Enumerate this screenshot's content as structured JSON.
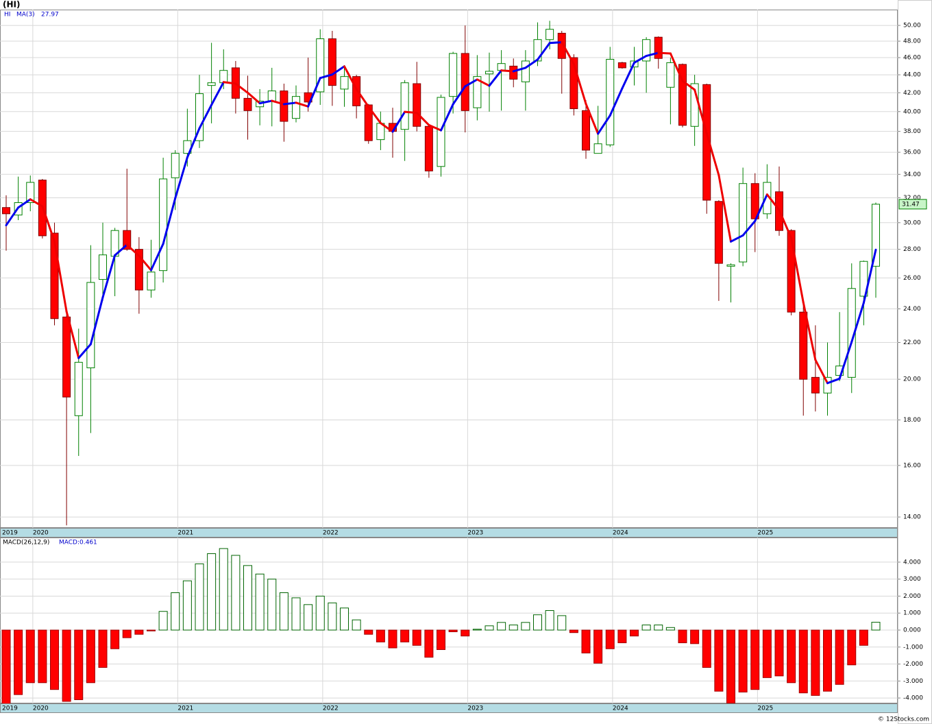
{
  "chart_data": [
    {
      "type": "candlestick",
      "title": "(HI)",
      "ticker": "HI",
      "ma_name": "MA(3)",
      "years": [
        "2019",
        "2020",
        "2021",
        "2022",
        "2023",
        "2024",
        "2025"
      ],
      "log_scale": true,
      "grid": true,
      "up_color": "#008000",
      "down_color": "#ff0000",
      "ma_up_color": "#0000ee",
      "ma_down_color": "#ee0000",
      "ylim": [
        13.61,
        52.09
      ],
      "yticks": [
        {
          "value": 14,
          "label": "14.00"
        },
        {
          "value": 16,
          "label": "16.00"
        },
        {
          "value": 18,
          "label": "18.00"
        },
        {
          "value": 20,
          "label": "20.00"
        },
        {
          "value": 22,
          "label": "22.00"
        },
        {
          "value": 24,
          "label": "24.00"
        },
        {
          "value": 26,
          "label": "26.00"
        },
        {
          "value": 28,
          "label": "28.00"
        },
        {
          "value": 30,
          "label": "30.00"
        },
        {
          "value": 32,
          "label": "32.00"
        },
        {
          "value": 34,
          "label": "34.00"
        },
        {
          "value": 36,
          "label": "36.00"
        },
        {
          "value": 38,
          "label": "38.00"
        },
        {
          "value": 40,
          "label": "40.00"
        },
        {
          "value": 42,
          "label": "42.00"
        },
        {
          "value": 44,
          "label": "44.00"
        },
        {
          "value": 46,
          "label": "46.00"
        },
        {
          "value": 48,
          "label": "48.00"
        },
        {
          "value": 50,
          "label": "50.00"
        }
      ],
      "open": [
        31.2,
        30.6,
        31.6,
        33.5,
        29.2,
        23.5,
        18.2,
        20.6,
        25.9,
        27.5,
        29.4,
        28.0,
        25.2,
        26.5,
        33.7,
        35.9,
        37.1,
        42.8,
        43.1,
        44.8,
        41.4,
        40.5,
        41.1,
        42.2,
        39.3,
        42.0,
        42.1,
        48.3,
        42.4,
        43.8,
        40.7,
        37.2,
        38.8,
        38.2,
        43.0,
        38.5,
        34.7,
        41.6,
        46.5,
        40.4,
        44.1,
        44.5,
        45.0,
        43.2,
        45.6,
        48.2,
        49.0,
        46.0,
        40.1,
        35.9,
        36.7,
        45.4,
        44.9,
        45.6,
        48.5,
        42.6,
        45.2,
        38.5,
        42.9,
        31.7,
        26.8,
        27.1,
        33.2,
        30.7,
        32.5,
        29.4,
        23.8,
        20.1,
        19.3,
        20.2,
        20.1,
        24.8,
        26.8
      ],
      "high": [
        32.2,
        33.8,
        33.9,
        33.6,
        30.0,
        24.0,
        22.8,
        28.3,
        30.0,
        29.6,
        34.5,
        28.9,
        28.7,
        35.5,
        36.2,
        40.3,
        44.0,
        47.8,
        47.0,
        45.6,
        43.9,
        42.4,
        44.8,
        43.0,
        42.8,
        46.0,
        49.5,
        49.3,
        45.1,
        44.0,
        40.8,
        40.0,
        40.4,
        43.4,
        45.5,
        38.7,
        41.8,
        46.7,
        50.0,
        46.3,
        46.6,
        46.9,
        45.9,
        46.9,
        50.4,
        50.6,
        49.3,
        46.4,
        41.2,
        40.6,
        47.3,
        45.5,
        47.3,
        48.5,
        48.6,
        46.0,
        45.3,
        44.0,
        43.0,
        31.8,
        27.0,
        34.6,
        34.1,
        34.9,
        34.7,
        29.5,
        24.5,
        23.0,
        22.0,
        23.8,
        27.0,
        27.2,
        31.6
      ],
      "low": [
        27.9,
        30.2,
        30.9,
        28.8,
        23.0,
        13.7,
        16.4,
        17.4,
        24.5,
        24.8,
        27.9,
        23.7,
        24.7,
        25.7,
        31.0,
        34.7,
        36.4,
        38.8,
        42.4,
        39.8,
        37.2,
        38.6,
        38.5,
        37.0,
        38.9,
        40.0,
        40.7,
        40.6,
        40.5,
        39.3,
        36.8,
        36.2,
        35.5,
        35.2,
        38.0,
        33.7,
        33.8,
        39.8,
        37.9,
        39.1,
        40.0,
        40.1,
        42.6,
        40.1,
        45.0,
        47.0,
        41.9,
        39.6,
        35.4,
        35.9,
        36.5,
        44.7,
        42.8,
        42.0,
        44.7,
        38.7,
        38.4,
        36.6,
        30.7,
        24.5,
        24.4,
        26.8,
        27.8,
        30.3,
        29.0,
        23.6,
        18.2,
        18.4,
        18.2,
        19.9,
        19.3,
        23.0,
        24.7
      ],
      "close": [
        30.7,
        31.6,
        33.3,
        29.0,
        23.4,
        19.1,
        20.9,
        25.7,
        27.6,
        29.4,
        28.0,
        25.2,
        26.4,
        33.6,
        35.9,
        37.1,
        41.9,
        43.1,
        44.5,
        41.4,
        40.1,
        41.1,
        42.2,
        39.0,
        41.6,
        41.0,
        48.3,
        42.8,
        43.8,
        40.6,
        37.1,
        38.8,
        38.0,
        43.1,
        38.5,
        34.3,
        41.5,
        46.5,
        40.1,
        43.8,
        44.4,
        45.3,
        43.5,
        45.6,
        48.2,
        49.5,
        45.9,
        40.3,
        36.2,
        36.8,
        45.8,
        44.8,
        45.6,
        48.2,
        45.9,
        45.4,
        38.6,
        43.0,
        31.8,
        27.0,
        26.9,
        33.2,
        30.3,
        33.3,
        29.4,
        23.8,
        20.0,
        19.3,
        20.1,
        20.7,
        25.3,
        27.14,
        31.47
      ],
      "ma": [
        29.8,
        31.2,
        31.87,
        31.3,
        28.57,
        23.83,
        21.13,
        21.9,
        24.73,
        27.57,
        28.33,
        27.53,
        26.53,
        28.4,
        31.97,
        35.53,
        38.3,
        40.7,
        43.17,
        43.0,
        42.0,
        40.87,
        41.13,
        40.77,
        40.93,
        40.53,
        43.63,
        44.03,
        44.97,
        42.4,
        40.5,
        38.83,
        37.97,
        39.97,
        39.87,
        38.63,
        38.1,
        40.77,
        42.7,
        43.47,
        42.77,
        44.5,
        44.4,
        44.8,
        45.77,
        47.77,
        47.87,
        45.23,
        40.8,
        37.77,
        39.6,
        42.47,
        45.4,
        46.2,
        46.57,
        46.5,
        43.3,
        42.33,
        37.8,
        33.93,
        28.57,
        29.03,
        30.13,
        32.27,
        31.0,
        28.83,
        24.4,
        21.03,
        19.8,
        20.03,
        22.03,
        24.38,
        27.97
      ]
    },
    {
      "type": "bar",
      "title": "MACD(26,12,9)",
      "value_text": "MACD:0.461",
      "years": [
        "2019",
        "2020",
        "2021",
        "2022",
        "2023",
        "2024",
        "2025"
      ],
      "pos_color": "#006400",
      "neg_color": "#ff0000",
      "grid": true,
      "ylim": [
        -4.32,
        5.45
      ],
      "yticks": [
        {
          "value": -4,
          "label": "-4.000"
        },
        {
          "value": -3,
          "label": "-3.000"
        },
        {
          "value": -2,
          "label": "-2.000"
        },
        {
          "value": -1,
          "label": "-1.000"
        },
        {
          "value": 0,
          "label": "0.000"
        },
        {
          "value": 1,
          "label": "1.000"
        },
        {
          "value": 2,
          "label": "2.000"
        },
        {
          "value": 3,
          "label": "3.000"
        },
        {
          "value": 4,
          "label": "4.000"
        }
      ],
      "values": [
        -4.5,
        -3.8,
        -3.1,
        -3.1,
        -3.5,
        -4.2,
        -4.1,
        -3.1,
        -2.2,
        -1.1,
        -0.45,
        -0.25,
        -0.05,
        1.1,
        2.2,
        2.9,
        3.9,
        4.5,
        4.8,
        4.4,
        3.8,
        3.3,
        3.0,
        2.2,
        1.9,
        1.5,
        2.0,
        1.6,
        1.3,
        0.6,
        -0.25,
        -0.7,
        -1.05,
        -0.7,
        -0.9,
        -1.6,
        -1.15,
        -0.1,
        -0.35,
        0.05,
        0.25,
        0.45,
        0.3,
        0.45,
        0.9,
        1.15,
        0.85,
        -0.15,
        -1.35,
        -1.95,
        -1.1,
        -0.75,
        -0.35,
        0.3,
        0.3,
        0.15,
        -0.75,
        -0.8,
        -2.2,
        -3.6,
        -4.3,
        -3.65,
        -3.5,
        -2.8,
        -2.7,
        -3.1,
        -3.7,
        -3.85,
        -3.6,
        -3.2,
        -2.05,
        -0.9,
        0.461
      ]
    }
  ],
  "footer": "© 12Stocks.com"
}
